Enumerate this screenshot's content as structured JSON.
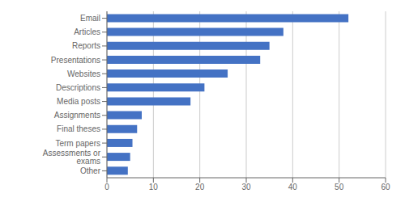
{
  "chart_data": {
    "type": "bar",
    "orientation": "horizontal",
    "categories": [
      "Email",
      "Articles",
      "Reports",
      "Presentations",
      "Websites",
      "Descriptions",
      "Media posts",
      "Assignments",
      "Final theses",
      "Term papers",
      "Assessments or exams",
      "Other"
    ],
    "values": [
      52,
      38,
      35,
      33,
      26,
      21,
      18,
      7.5,
      6.5,
      5.5,
      5,
      4.5
    ],
    "color": "#4472c4",
    "xlim": [
      0,
      60
    ],
    "xticks": [
      0,
      10,
      20,
      30,
      40,
      50,
      60
    ],
    "grid": true
  }
}
